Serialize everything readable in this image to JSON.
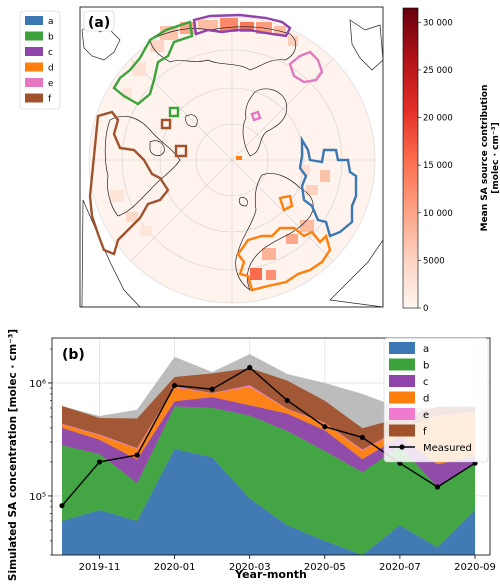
{
  "figure": {
    "panel_a": {
      "label": "(a)",
      "colorbar": {
        "title_line1": "Mean SA source contribution",
        "title_line2": "[molec · cm⁻³]",
        "ticks": [
          "0",
          "5000",
          "10 000",
          "15 000",
          "20 000",
          "25 000",
          "30 000"
        ],
        "colors": [
          "#fff5f0",
          "#fdd4c2",
          "#fca082",
          "#fb6b4b",
          "#e32f27",
          "#b11218",
          "#67000d"
        ]
      },
      "legend": [
        {
          "key": "a",
          "color": "#3b77b3"
        },
        {
          "key": "b",
          "color": "#3ca33c"
        },
        {
          "key": "c",
          "color": "#8e44a8"
        },
        {
          "key": "d",
          "color": "#ff7f0e"
        },
        {
          "key": "e",
          "color": "#e377c2"
        },
        {
          "key": "f",
          "color": "#a0522d"
        }
      ]
    },
    "panel_b": {
      "label": "(b)"
    }
  },
  "chart_data": {
    "type": "area",
    "x": [
      "2019-10",
      "2019-11",
      "2019-12",
      "2020-01",
      "2020-02",
      "2020-03",
      "2020-04",
      "2020-05",
      "2020-06",
      "2020-07",
      "2020-08",
      "2020-09"
    ],
    "xticks": [
      "2019-11",
      "2020-01",
      "2020-03",
      "2020-05",
      "2020-07",
      "2020-09"
    ],
    "xlabel": "Year-month",
    "ylabel": "Simulated SA concentration [molec · cm⁻³]",
    "yscale": "log",
    "ylim": [
      30000,
      2500000
    ],
    "yticks": [
      {
        "value": 100000,
        "label": "10⁵"
      },
      {
        "value": 1000000,
        "label": "10⁶"
      }
    ],
    "series": [
      {
        "name": "a",
        "color": "#3b77b3",
        "values": [
          60000,
          75000,
          60000,
          260000,
          220000,
          95000,
          55000,
          40000,
          22000,
          55000,
          35000,
          75000
        ]
      },
      {
        "name": "b",
        "color": "#3ca33c",
        "values": [
          220000,
          160000,
          70000,
          360000,
          380000,
          420000,
          320000,
          210000,
          140000,
          220000,
          85000,
          120000
        ]
      },
      {
        "name": "c",
        "color": "#8e44a8",
        "values": [
          120000,
          80000,
          80000,
          70000,
          150000,
          120000,
          160000,
          130000,
          50000,
          60000,
          70000,
          30000
        ]
      },
      {
        "name": "d",
        "color": "#ff7f0e",
        "values": [
          30000,
          30000,
          50000,
          220000,
          60000,
          290000,
          50000,
          60000,
          40000,
          50000,
          320000,
          330000
        ]
      },
      {
        "name": "e",
        "color": "#f07ad0",
        "values": [
          5000,
          5000,
          5000,
          20000,
          5000,
          30000,
          5000,
          5000,
          5000,
          5000,
          5000,
          5000
        ]
      },
      {
        "name": "f",
        "color": "#a0522d",
        "values": [
          190000,
          140000,
          220000,
          200000,
          400000,
          400000,
          460000,
          250000,
          140000,
          100000,
          100000,
          60000
        ]
      }
    ],
    "total_band": {
      "color": "#b0b0b0",
      "values": [
        625000,
        510000,
        580000,
        1700000,
        1250000,
        1800000,
        1200000,
        1000000,
        800000,
        600000,
        600000,
        560000
      ]
    },
    "measured": {
      "name": "Measured",
      "color": "#000000",
      "values": [
        82000,
        200000,
        230000,
        950000,
        880000,
        1370000,
        700000,
        410000,
        330000,
        195000,
        120000,
        195000
      ]
    }
  }
}
